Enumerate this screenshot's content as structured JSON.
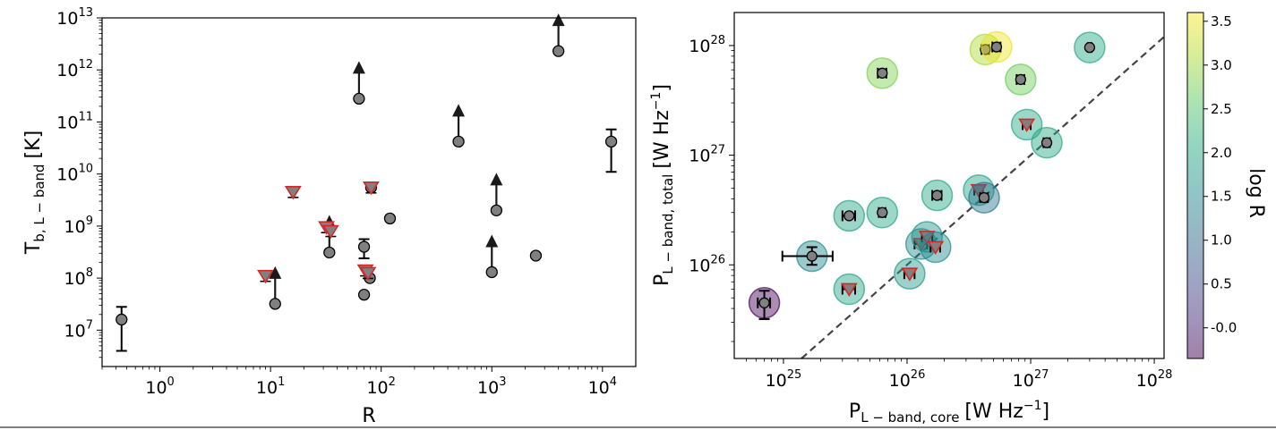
{
  "chart_data": [
    {
      "type": "scatter",
      "panel": "left",
      "xscale": "log",
      "yscale": "log",
      "xlim": [
        0.3,
        20000
      ],
      "ylim": [
        2000000,
        10000000000000
      ],
      "x_ticks": [
        {
          "value": 1,
          "base": "10",
          "exp": "0"
        },
        {
          "value": 10,
          "base": "10",
          "exp": "1"
        },
        {
          "value": 100,
          "base": "10",
          "exp": "2"
        },
        {
          "value": 1000,
          "base": "10",
          "exp": "3"
        },
        {
          "value": 10000,
          "base": "10",
          "exp": "4"
        }
      ],
      "y_ticks": [
        {
          "value": 10000000,
          "base": "10",
          "exp": "7"
        },
        {
          "value": 100000000,
          "base": "10",
          "exp": "8"
        },
        {
          "value": 1000000000,
          "base": "10",
          "exp": "9"
        },
        {
          "value": 10000000000,
          "base": "10",
          "exp": "10"
        },
        {
          "value": 100000000000,
          "base": "10",
          "exp": "11"
        },
        {
          "value": 1000000000000,
          "base": "10",
          "exp": "12"
        },
        {
          "value": 10000000000000,
          "base": "10",
          "exp": "13"
        }
      ],
      "xlabel": "R",
      "ylabel_main": "T",
      "ylabel_sub": "b, L − band",
      "ylabel_unit": "[K]",
      "grid": false,
      "colors": {
        "marker_face": "#808080",
        "marker_edge": "#000000",
        "upper_limit_edge": "#d62728",
        "arrow": "#1a1a1a",
        "errorbar": "#000000"
      },
      "detections": [
        {
          "x": 0.45,
          "y": 16000000,
          "yerr_low": 4000000,
          "yerr_high": 28000000
        },
        {
          "x": 11,
          "y": 32000000,
          "lower_limit": true
        },
        {
          "x": 34,
          "y": 310000000,
          "lower_limit": true
        },
        {
          "x": 63,
          "y": 280000000000,
          "lower_limit": true
        },
        {
          "x": 70,
          "y": 48000000
        },
        {
          "x": 70,
          "y": 400000000,
          "yerr_low": 240000000,
          "yerr_high": 560000000
        },
        {
          "x": 79,
          "y": 100000000
        },
        {
          "x": 81,
          "y": 5500000000
        },
        {
          "x": 120,
          "y": 1400000000
        },
        {
          "x": 500,
          "y": 42000000000,
          "lower_limit": true
        },
        {
          "x": 1000,
          "y": 130000000,
          "lower_limit": true
        },
        {
          "x": 1100,
          "y": 2000000000,
          "lower_limit": true
        },
        {
          "x": 2500,
          "y": 270000000
        },
        {
          "x": 4000,
          "y": 2300000000000,
          "lower_limit": true
        },
        {
          "x": 12000,
          "y": 42000000000,
          "yerr_low": 11000000000,
          "yerr_high": 72000000000
        }
      ],
      "upper_limits": [
        {
          "x": 9,
          "y": 110000000
        },
        {
          "x": 16,
          "y": 4500000000
        },
        {
          "x": 32,
          "y": 950000000
        },
        {
          "x": 35,
          "y": 800000000
        },
        {
          "x": 72,
          "y": 140000000
        },
        {
          "x": 76,
          "y": 125000000
        },
        {
          "x": 81,
          "y": 5500000000
        }
      ]
    },
    {
      "type": "scatter",
      "panel": "right",
      "xscale": "log",
      "yscale": "log",
      "xlim": [
        4e+24,
        1.2e+28
      ],
      "ylim": [
        1.4e+25,
        2e+28
      ],
      "x_ticks": [
        {
          "value": 1e+25,
          "base": "10",
          "exp": "25"
        },
        {
          "value": 1e+26,
          "base": "10",
          "exp": "26"
        },
        {
          "value": 1e+27,
          "base": "10",
          "exp": "27"
        },
        {
          "value": 1e+28,
          "base": "10",
          "exp": "28"
        }
      ],
      "y_ticks": [
        {
          "value": 1e+26,
          "base": "10",
          "exp": "26"
        },
        {
          "value": 1e+27,
          "base": "10",
          "exp": "27"
        },
        {
          "value": 1e+28,
          "base": "10",
          "exp": "28"
        }
      ],
      "xlabel_main": "P",
      "xlabel_sub": "L − band, core",
      "xlabel_unit": "[W Hz",
      "xlabel_exp": "−1",
      "ylabel_main": "P",
      "ylabel_sub": "L − band, total",
      "ylabel_unit": "[W Hz",
      "ylabel_exp": "−1",
      "reference_line": "y = x (dashed)",
      "grid": false,
      "colors": {
        "marker_face": "#808080",
        "marker_edge": "#000000",
        "upper_limit_edge": "#d62728",
        "line": "#444444"
      },
      "points": [
        {
          "x": 7e+24,
          "y": 4.5e+25,
          "logR": -0.35,
          "xerr_low": 6.2e+24,
          "xerr_high": 7.8e+24,
          "yerr_low": 3.2e+25,
          "yerr_high": 5.8e+25
        },
        {
          "x": 1.7e+25,
          "y": 1.2e+26,
          "logR": 1.5,
          "xerr_low": 9.8e+24,
          "xerr_high": 2.5e+25,
          "yerr_low": 1e+26,
          "yerr_high": 1.45e+26
        },
        {
          "x": 3.4e+25,
          "y": 6e+25,
          "logR": 1.9,
          "xerr_low": 3e+25,
          "xerr_high": 3.8e+25,
          "upper_limit": true
        },
        {
          "x": 3.4e+25,
          "y": 2.8e+26,
          "logR": 1.9,
          "xerr_low": 3e+25,
          "xerr_high": 3.8e+25
        },
        {
          "x": 6.3e+25,
          "y": 3e+26,
          "logR": 2.0,
          "xerr_low": 5.9e+25,
          "xerr_high": 6.7e+25
        },
        {
          "x": 6.3e+25,
          "y": 5.6e+27,
          "logR": 2.8,
          "xerr_low": 5.8e+25,
          "xerr_high": 6.8e+25
        },
        {
          "x": 1.05e+26,
          "y": 8.3e+25,
          "logR": 1.8,
          "xerr_low": 9.5e+25,
          "xerr_high": 1.15e+26,
          "upper_limit": true
        },
        {
          "x": 1.3e+26,
          "y": 1.55e+26,
          "logR": 1.5,
          "xerr_low": 1.15e+26,
          "xerr_high": 1.45e+26,
          "upper_limit": true
        },
        {
          "x": 1.45e+26,
          "y": 1.8e+26,
          "logR": 1.7,
          "xerr_low": 1.32e+26,
          "xerr_high": 1.6e+26,
          "upper_limit": true
        },
        {
          "x": 1.7e+26,
          "y": 1.45e+26,
          "logR": 1.5,
          "xerr_low": 1.55e+26,
          "xerr_high": 1.85e+26,
          "upper_limit": true
        },
        {
          "x": 1.75e+26,
          "y": 4.3e+26,
          "logR": 2.0,
          "xerr_low": 1.6e+26,
          "xerr_high": 1.9e+26
        },
        {
          "x": 3.8e+26,
          "y": 4.8e+26,
          "logR": 1.9,
          "xerr_low": 3.5e+26,
          "xerr_high": 4.1e+26,
          "upper_limit": true
        },
        {
          "x": 4.2e+26,
          "y": 4.1e+26,
          "logR": 1.2,
          "xerr_low": 3.9e+26,
          "xerr_high": 4.5e+26
        },
        {
          "x": 4.3e+26,
          "y": 9.2e+27,
          "logR": 3.1,
          "xerr_low": 4e+26,
          "xerr_high": 4.6e+26
        },
        {
          "x": 5.3e+26,
          "y": 9.7e+27,
          "logR": 3.5,
          "xerr_low": 4.9e+26,
          "xerr_high": 5.7e+26
        },
        {
          "x": 8.3e+26,
          "y": 4.9e+27,
          "logR": 2.7,
          "xerr_low": 7.7e+26,
          "xerr_high": 8.9e+26
        },
        {
          "x": 9.3e+26,
          "y": 1.9e+27,
          "logR": 2.0,
          "xerr_low": 8.6e+26,
          "xerr_high": 1e+27,
          "upper_limit": true
        },
        {
          "x": 1.35e+27,
          "y": 1.3e+27,
          "logR": 2.0,
          "xerr_low": 1.27e+27,
          "xerr_high": 1.43e+27
        },
        {
          "x": 3e+27,
          "y": 9.6e+27,
          "logR": 2.0,
          "xerr_low": 2.9e+27,
          "xerr_high": 3.1e+27
        }
      ]
    },
    {
      "type": "colorbar",
      "label": "log R",
      "range": [
        -0.35,
        3.6
      ],
      "ticks": [
        "-0.0",
        "0.5",
        "1.0",
        "1.5",
        "2.0",
        "2.5",
        "3.0",
        "3.5"
      ],
      "tick_values": [
        0,
        0.5,
        1,
        1.5,
        2,
        2.5,
        3,
        3.5
      ],
      "colormap": "viridis",
      "alpha": 0.45
    }
  ]
}
